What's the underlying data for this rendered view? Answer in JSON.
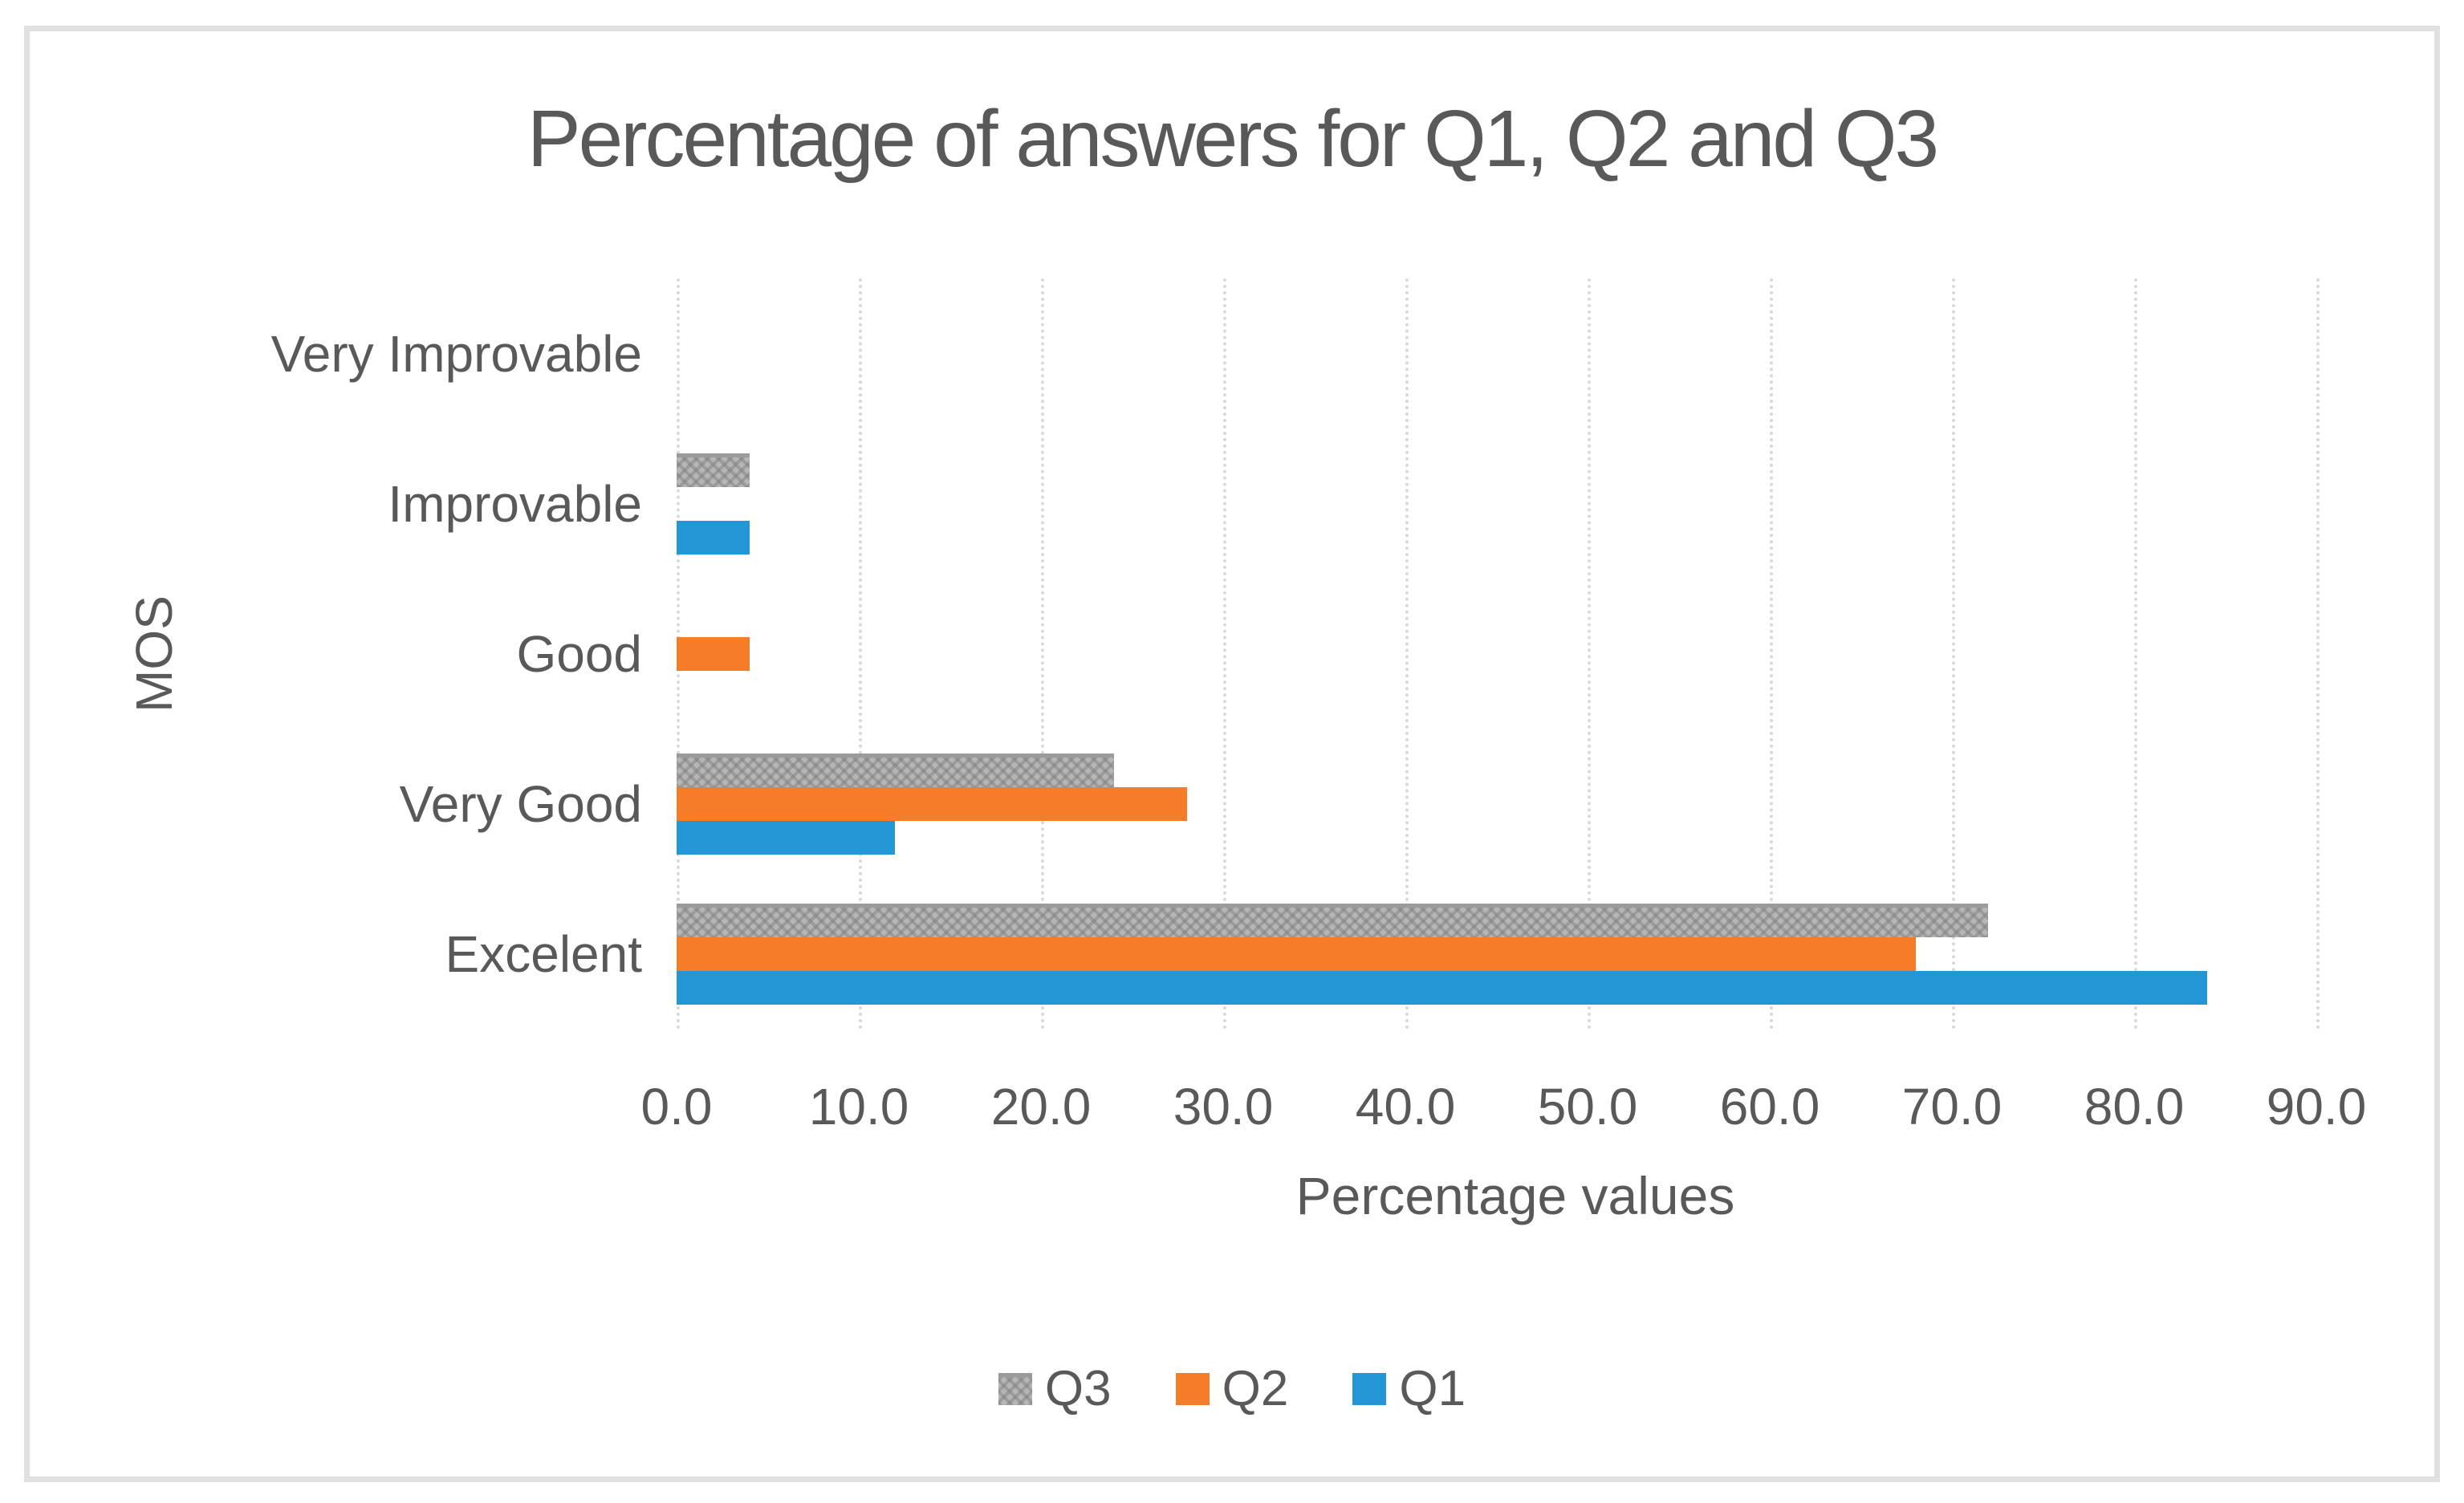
{
  "chart_data": {
    "type": "bar",
    "orientation": "horizontal",
    "title": "Percentage of answers for Q1, Q2 and Q3",
    "xlabel": "Percentage values",
    "ylabel": "MOS",
    "categories": [
      "Very Improvable",
      "Improvable",
      "Good",
      "Very Good",
      "Excelent"
    ],
    "series": [
      {
        "name": "Q3",
        "color": "#B6B6B6",
        "pattern": "diamond-checker",
        "values": [
          0,
          4,
          0,
          24,
          72
        ]
      },
      {
        "name": "Q2",
        "color": "#F67D28",
        "pattern": null,
        "values": [
          0,
          0,
          4,
          28,
          68
        ]
      },
      {
        "name": "Q1",
        "color": "#2397D5",
        "pattern": null,
        "values": [
          0,
          4,
          0,
          12,
          84
        ]
      }
    ],
    "x_ticks": [
      "0.0",
      "10.0",
      "20.0",
      "30.0",
      "40.0",
      "50.0",
      "60.0",
      "70.0",
      "80.0",
      "90.0"
    ],
    "xlim": [
      0,
      90
    ],
    "grid": "vertical-dotted",
    "legend": [
      "Q3",
      "Q2",
      "Q1"
    ],
    "legend_position": "bottom-center"
  },
  "colors": {
    "text": "#595959",
    "gridline": "#D9D9D9",
    "frame_border": "#E0E0E0",
    "q1_blue": "#2397D5",
    "q2_orange": "#F67D28",
    "q3_gray": "#B6B6B6"
  }
}
